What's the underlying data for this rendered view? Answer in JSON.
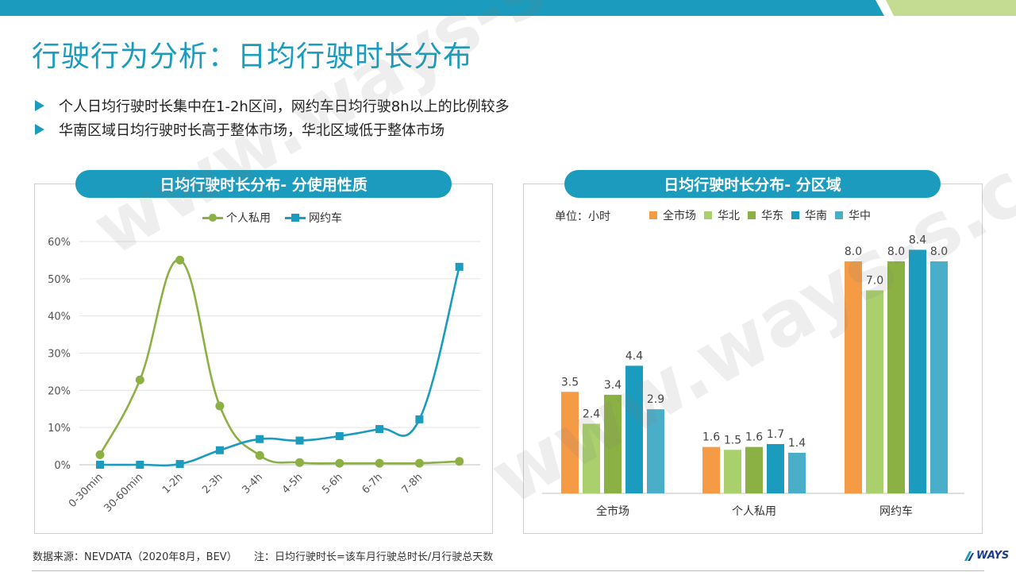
{
  "page": {
    "title": "行驶行为分析：日均行驶时长分布",
    "bullets": [
      "个人日均行驶时长集中在1-2h区间，网约车日均行驶8h以上的比例较多",
      "华南区域日均行驶时长高于整体市场，华北区域低于整体市场"
    ],
    "watermark": "www.ways-s.cn",
    "colors": {
      "accent": "#1b9bbd",
      "accent_light": "#8cc34a"
    }
  },
  "left_panel": {
    "title": "日均行驶时长分布- 分使用性质",
    "legend": [
      "个人私用",
      "网约车"
    ]
  },
  "right_panel": {
    "title": "日均行驶时长分布- 分区域",
    "unit": "单位：小时",
    "legend": [
      "全市场",
      "华北",
      "华东",
      "华南",
      "华中"
    ]
  },
  "chart_data": [
    {
      "type": "line",
      "categories": [
        "0-30min",
        "30-60min",
        "1-2h",
        "2-3h",
        "3-4h",
        "4-5h",
        "5-6h",
        "6-7h",
        "7-8h",
        ""
      ],
      "y_ticks": [
        "0%",
        "10%",
        "20%",
        "30%",
        "40%",
        "50%",
        "60%"
      ],
      "ylim": [
        0,
        60
      ],
      "smooth": true,
      "grid": true,
      "legend_position": "top",
      "series": [
        {
          "name": "个人私用",
          "color": "#8bb043",
          "marker": "circle",
          "values": [
            2.7,
            22.8,
            55.0,
            15.8,
            2.5,
            0.6,
            0.4,
            0.4,
            0.4,
            0.9
          ]
        },
        {
          "name": "网约车",
          "color": "#1b9bbd",
          "marker": "square",
          "values": [
            0.0,
            0.0,
            0.2,
            3.9,
            6.9,
            6.5,
            7.7,
            9.6,
            12.2,
            53.2
          ]
        }
      ]
    },
    {
      "type": "bar",
      "categories": [
        "全市场",
        "个人私用",
        "网约车"
      ],
      "legend_position": "top",
      "series": [
        {
          "name": "全市场",
          "color": "#f59a45",
          "values": [
            3.5,
            1.6,
            8.0
          ]
        },
        {
          "name": "华北",
          "color": "#a9d06d",
          "values": [
            2.4,
            1.5,
            7.0
          ]
        },
        {
          "name": "华东",
          "color": "#8bb043",
          "values": [
            3.4,
            1.6,
            8.0
          ]
        },
        {
          "name": "华南",
          "color": "#1b9bbd",
          "values": [
            4.4,
            1.7,
            8.4
          ]
        },
        {
          "name": "华中",
          "color": "#4aaec8",
          "values": [
            2.9,
            1.4,
            8.0
          ]
        }
      ]
    }
  ],
  "footer": {
    "source": "数据来源：NEVDATA（2020年8月，BEV）",
    "note": "注：日均行驶时长=该车月行驶总时长/月行驶总天数",
    "brand": "WAYS"
  }
}
